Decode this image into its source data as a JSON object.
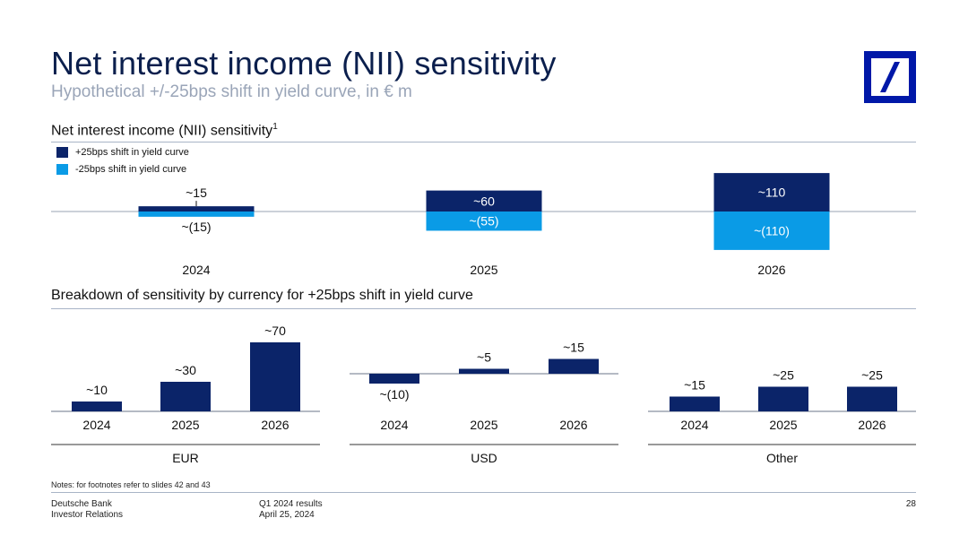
{
  "header": {
    "title": "Net interest income (NII) sensitivity",
    "subtitle": "Hypothetical +/-25bps shift in yield curve, in € m"
  },
  "colors": {
    "dark_blue": "#0b2469",
    "light_blue": "#0a9be6",
    "brand_blue": "#0018a8",
    "rule": "#a8b4c6"
  },
  "logo": {
    "icon": "deutsche-bank-logo"
  },
  "top_section": {
    "title": "Net interest income (NII) sensitivity",
    "footnote_marker": "1",
    "legend": [
      {
        "label": "+25bps shift in yield curve",
        "color": "#0b2469"
      },
      {
        "label": "-25bps shift in yield curve",
        "color": "#0a9be6"
      }
    ]
  },
  "bottom_section": {
    "title": "Breakdown of sensitivity by currency for +25bps shift in yield curve"
  },
  "chart_data": [
    {
      "type": "bar",
      "categories": [
        "2024",
        "2025",
        "2026"
      ],
      "series": [
        {
          "name": "+25bps shift in yield curve",
          "values": [
            15,
            60,
            110
          ],
          "labels": [
            "~15",
            "~60",
            "~110"
          ],
          "color": "#0b2469"
        },
        {
          "name": "-25bps shift in yield curve",
          "values": [
            -15,
            -55,
            -110
          ],
          "labels": [
            "~(15)",
            "~(55)",
            "~(110)"
          ],
          "color": "#0a9be6"
        }
      ]
    },
    {
      "type": "bar",
      "group": "EUR",
      "categories": [
        "2024",
        "2025",
        "2026"
      ],
      "values": [
        10,
        30,
        70
      ],
      "labels": [
        "~10",
        "~30",
        "~70"
      ]
    },
    {
      "type": "bar",
      "group": "USD",
      "categories": [
        "2024",
        "2025",
        "2026"
      ],
      "values": [
        -10,
        5,
        15
      ],
      "labels": [
        "~(10)",
        "~5",
        "~15"
      ]
    },
    {
      "type": "bar",
      "group": "Other",
      "categories": [
        "2024",
        "2025",
        "2026"
      ],
      "values": [
        15,
        25,
        25
      ],
      "labels": [
        "~15",
        "~25",
        "~25"
      ]
    }
  ],
  "footer": {
    "notes": "Notes: for footnotes refer to slides 42 and 43",
    "company": "Deutsche Bank",
    "department": "Investor Relations",
    "report": "Q1 2024 results",
    "date": "April 25, 2024",
    "page_number": "28"
  }
}
